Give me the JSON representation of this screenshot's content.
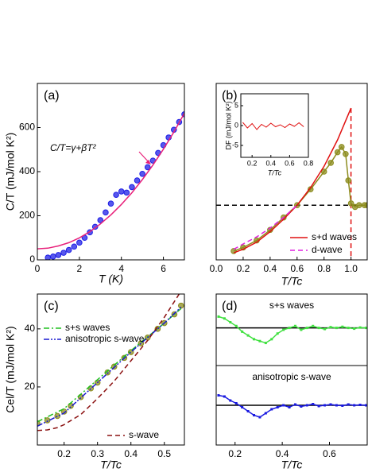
{
  "chart_data": [
    {
      "type": "line",
      "label": "(a)",
      "xlabel": "T (K)",
      "ylabel": "C/T (mJ/mol K²)",
      "xlim": [
        0,
        7
      ],
      "ylim": [
        0,
        800
      ],
      "xticks": [
        0,
        2,
        4,
        6
      ],
      "yticks": [
        0,
        200,
        400,
        600
      ],
      "annotation": {
        "text": "C/T=γ+βT²",
        "color": "#e8207a"
      },
      "series": [
        {
          "color": "#1f1fe6",
          "line": "none",
          "marker": "circle",
          "x": [
            0.5,
            0.75,
            1,
            1.25,
            1.5,
            1.75,
            2,
            2.25,
            2.5,
            2.75,
            3,
            3.25,
            3.5,
            3.75,
            4,
            4.25,
            4.5,
            4.75,
            5,
            5.25,
            5.5,
            5.75,
            6,
            6.25,
            6.5,
            6.75,
            7
          ],
          "values": [
            10,
            15,
            22,
            32,
            45,
            60,
            78,
            100,
            125,
            150,
            180,
            215,
            255,
            295,
            310,
            305,
            330,
            360,
            390,
            420,
            450,
            485,
            520,
            555,
            590,
            625,
            660
          ]
        },
        {
          "color": "#e8207a",
          "line": "solid",
          "marker": "none",
          "x": [
            0,
            0.5,
            1,
            1.5,
            2,
            2.5,
            3,
            3.5,
            4,
            4.5,
            5,
            5.5,
            6,
            6.5,
            7
          ],
          "values": [
            50,
            53,
            63,
            78,
            100,
            128,
            163,
            204,
            251,
            304,
            364,
            430,
            502,
            580,
            665
          ]
        }
      ]
    },
    {
      "type": "line",
      "label": "(b)",
      "xlabel": "T/Tc",
      "xlim": [
        0,
        1.12
      ],
      "ylim": [
        0,
        100
      ],
      "xticks": [
        {
          "value": 0,
          "label": "0.0"
        },
        0.2,
        0.4,
        0.6,
        0.8,
        {
          "value": 1,
          "label": "1.0"
        }
      ],
      "yticks": [],
      "legend_sample": true,
      "series": [
        {
          "color": "#000000",
          "line": "dashed",
          "marker": "none",
          "x": [
            0,
            1.12
          ],
          "values": [
            31,
            31
          ]
        },
        {
          "color": "#e01010",
          "line": "dashed",
          "marker": "none",
          "x": [
            1,
            1
          ],
          "values": [
            86,
            0
          ]
        },
        {
          "color": "#8c8c1e",
          "line": "solid",
          "marker": "circle",
          "x": [
            0.13,
            0.2,
            0.3,
            0.4,
            0.5,
            0.6,
            0.7,
            0.8,
            0.85,
            0.9,
            0.93,
            0.96,
            0.98,
            1.0,
            1.03,
            1.06,
            1.1,
            1.12
          ],
          "values": [
            5,
            7,
            11,
            17,
            24,
            31,
            40,
            50,
            55,
            61,
            64,
            60,
            45,
            32,
            30,
            31,
            31,
            31
          ]
        },
        {
          "name": "s+d waves",
          "legend": "lower right",
          "color": "#e01010",
          "line": "solid",
          "marker": "none",
          "x": [
            0.13,
            0.2,
            0.3,
            0.4,
            0.5,
            0.6,
            0.7,
            0.8,
            0.9,
            1.0
          ],
          "values": [
            4,
            6,
            10,
            16,
            23,
            31,
            41,
            53,
            68,
            86
          ]
        },
        {
          "name": "d-wave",
          "legend": "lower right",
          "color": "#e020e0",
          "line": "dashed",
          "marker": "none",
          "x": [
            0.13,
            0.2,
            0.3,
            0.4,
            0.5,
            0.6
          ],
          "values": [
            6,
            9,
            13,
            18,
            24,
            31
          ]
        }
      ]
    },
    {
      "type": "line",
      "xlabel": "T/Tc",
      "ylabel": "DF (mJ/mol K²)",
      "xlim": [
        0.08,
        0.8
      ],
      "ylim": [
        -8,
        8
      ],
      "xticks": [
        0.2,
        0.4,
        0.6,
        0.8
      ],
      "yticks": [
        -5,
        0,
        5
      ],
      "series": [
        {
          "color": "#e01010",
          "line": "solid",
          "marker": "none",
          "x": [
            0.1,
            0.15,
            0.2,
            0.25,
            0.3,
            0.35,
            0.4,
            0.45,
            0.5,
            0.55,
            0.6,
            0.65,
            0.7,
            0.75
          ],
          "values": [
            0.8,
            -0.6,
            0.5,
            -1,
            0.3,
            -0.4,
            0.6,
            -0.3,
            0.2,
            -0.5,
            0.4,
            -0.2,
            0.7,
            -0.3
          ]
        }
      ]
    },
    {
      "type": "line",
      "label": "(c)",
      "xlabel": "T/Tc",
      "ylabel": "Cel/T (mJ/mol K²)",
      "xlim": [
        0.12,
        0.56
      ],
      "ylim": [
        0,
        52
      ],
      "xticks": [
        0.2,
        0.3,
        0.4,
        0.5
      ],
      "yticks": [
        20,
        40
      ],
      "legend_sample": true,
      "series": [
        {
          "color": "#8c8c1e",
          "line": "none",
          "marker": "circle",
          "x": [
            0.12,
            0.15,
            0.18,
            0.2,
            0.22,
            0.25,
            0.28,
            0.3,
            0.33,
            0.35,
            0.38,
            0.4,
            0.43,
            0.45,
            0.48,
            0.5,
            0.53,
            0.55
          ],
          "values": [
            7.5,
            8.5,
            10,
            11.5,
            13.5,
            16.5,
            19.5,
            21.5,
            25,
            27,
            30,
            32,
            35,
            37,
            40,
            42,
            45,
            48
          ]
        },
        {
          "name": "s+s waves",
          "legend": "upper left",
          "color": "#20c020",
          "line": "dashdot",
          "marker": "none",
          "x": [
            0.12,
            0.2,
            0.3,
            0.4,
            0.5,
            0.55
          ],
          "values": [
            8,
            12.5,
            22.5,
            32.5,
            42,
            47
          ]
        },
        {
          "name": "anisotropic s-wave",
          "legend": "upper left",
          "color": "#1a1ad0",
          "line": "dashdotdot",
          "marker": "none",
          "x": [
            0.12,
            0.2,
            0.3,
            0.4,
            0.5,
            0.55
          ],
          "values": [
            6.5,
            11,
            21.5,
            32,
            42,
            47.5
          ]
        },
        {
          "name": "s-wave",
          "legend": "lower right",
          "color": "#8b1010",
          "line": "dashed",
          "marker": "none",
          "x": [
            0.12,
            0.15,
            0.18,
            0.2,
            0.25,
            0.3,
            0.35,
            0.4,
            0.45,
            0.5,
            0.55
          ],
          "values": [
            5,
            5.2,
            6,
            7,
            10.5,
            16,
            22,
            29,
            36,
            44,
            53
          ]
        }
      ]
    },
    {
      "type": "line",
      "label": "(d)",
      "xlim": [
        0.12,
        0.76
      ],
      "ylim": [
        -1,
        0.9
      ],
      "xticks": [],
      "yticks": [],
      "legend_sample": false,
      "series": [
        {
          "color": "#000000",
          "line": "solid",
          "marker": "none",
          "x": [
            0.12,
            0.76
          ],
          "values": [
            0,
            0
          ]
        },
        {
          "name": "s+s waves",
          "legend": "upper center",
          "color": "#40e040",
          "line": "solid",
          "marker": "square",
          "x": [
            0.13,
            0.155,
            0.18,
            0.205,
            0.23,
            0.255,
            0.28,
            0.305,
            0.33,
            0.355,
            0.38,
            0.405,
            0.43,
            0.455,
            0.48,
            0.505,
            0.53,
            0.555,
            0.58,
            0.605,
            0.63,
            0.655,
            0.68,
            0.705,
            0.73,
            0.755
          ],
          "values": [
            0.3,
            0.25,
            0.15,
            0.05,
            -0.1,
            -0.2,
            -0.3,
            -0.35,
            -0.4,
            -0.3,
            -0.15,
            -0.05,
            0,
            0.05,
            -0.05,
            0,
            0.05,
            0,
            -0.03,
            0.02,
            0,
            0.03,
            0,
            -0.02,
            0.01,
            0
          ]
        }
      ]
    },
    {
      "type": "line",
      "xlabel": "T/Tc",
      "xlim": [
        0.12,
        0.76
      ],
      "ylim": [
        -1,
        1
      ],
      "xticks": [
        0.2,
        0.4,
        0.6
      ],
      "yticks": [],
      "legend_sample": false,
      "series": [
        {
          "color": "#000000",
          "line": "solid",
          "marker": "none",
          "x": [
            0.12,
            0.76
          ],
          "values": [
            0,
            0
          ]
        },
        {
          "name": "anisotropic s-wave",
          "legend": "upper center",
          "color": "#1a1ae0",
          "line": "solid",
          "marker": "square",
          "x": [
            0.13,
            0.155,
            0.18,
            0.205,
            0.23,
            0.255,
            0.28,
            0.305,
            0.33,
            0.355,
            0.38,
            0.405,
            0.43,
            0.455,
            0.48,
            0.505,
            0.53,
            0.555,
            0.58,
            0.605,
            0.63,
            0.655,
            0.68,
            0.705,
            0.73,
            0.755
          ],
          "values": [
            0.25,
            0.22,
            0.12,
            0.05,
            -0.05,
            -0.15,
            -0.25,
            -0.3,
            -0.2,
            -0.1,
            -0.05,
            0,
            -0.05,
            0.02,
            -0.03,
            0,
            0.03,
            -0.02,
            0,
            0.02,
            0,
            -0.01,
            0.02,
            0,
            0.01,
            0
          ]
        }
      ]
    }
  ]
}
